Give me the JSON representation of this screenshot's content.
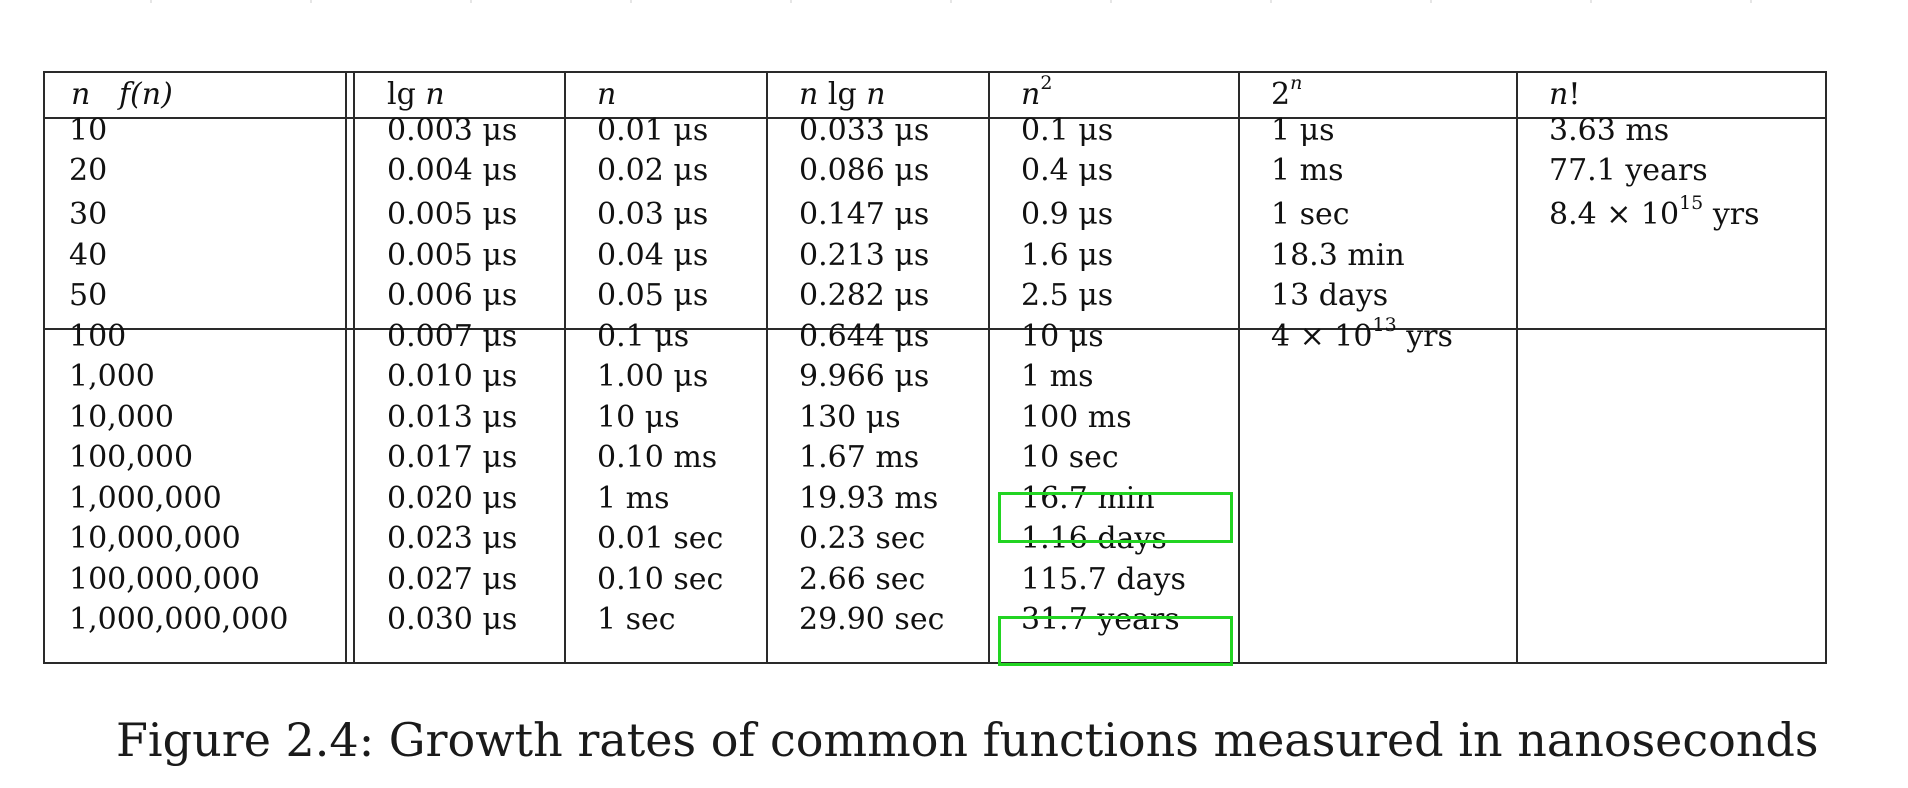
{
  "table": {
    "header": {
      "col0": "n",
      "col0b": "f(n)",
      "lg_label": "lg",
      "lg_var": "n",
      "n": "n",
      "nlgn_var": "n",
      "nlgn_lg": "lg",
      "nlgn_var2": "n",
      "n2_base": "n",
      "n2_exp": "2",
      "exp_base": "2",
      "exp_exp": "n",
      "fact_var": "n",
      "fact_bang": "!"
    },
    "rows": [
      {
        "n": "10",
        "lgn": "0.003 μs",
        "lin": "0.01 μs",
        "nlgn": "0.033 μs",
        "n2": "0.1 μs",
        "exp": "1 μs",
        "fact": "3.63 ms"
      },
      {
        "n": "20",
        "lgn": "0.004 μs",
        "lin": "0.02 μs",
        "nlgn": "0.086 μs",
        "n2": "0.4 μs",
        "exp": "1 ms",
        "fact": "77.1 years"
      },
      {
        "n": "30",
        "lgn": "0.005 μs",
        "lin": "0.03 μs",
        "nlgn": "0.147 μs",
        "n2": "0.9 μs",
        "exp": "1 sec",
        "fact_pre": "8.4 × 10",
        "fact_sup": "15",
        "fact_post": " yrs"
      },
      {
        "n": "40",
        "lgn": "0.005 μs",
        "lin": "0.04 μs",
        "nlgn": "0.213 μs",
        "n2": "1.6 μs",
        "exp": "18.3 min",
        "fact": ""
      },
      {
        "n": "50",
        "lgn": "0.006 μs",
        "lin": "0.05 μs",
        "nlgn": "0.282 μs",
        "n2": "2.5 μs",
        "exp": "13 days",
        "fact": ""
      },
      {
        "n": "100",
        "lgn": "0.007 μs",
        "lin": "0.1 μs",
        "nlgn": "0.644 μs",
        "n2": "10 μs",
        "exp_pre": "4 × 10",
        "exp_sup": "13",
        "exp_post": " yrs",
        "fact": ""
      },
      {
        "n": "1,000",
        "lgn": "0.010 μs",
        "lin": "1.00 μs",
        "nlgn": "9.966 μs",
        "n2": "1 ms",
        "exp": "",
        "fact": ""
      },
      {
        "n": "10,000",
        "lgn": "0.013 μs",
        "lin": "10 μs",
        "nlgn": "130 μs",
        "n2": "100 ms",
        "exp": "",
        "fact": ""
      },
      {
        "n": "100,000",
        "lgn": "0.017 μs",
        "lin": "0.10 ms",
        "nlgn": "1.67 ms",
        "n2": "10 sec",
        "exp": "",
        "fact": ""
      },
      {
        "n": "1,000,000",
        "lgn": "0.020 μs",
        "lin": "1 ms",
        "nlgn": "19.93 ms",
        "n2": "16.7 min",
        "exp": "",
        "fact": ""
      },
      {
        "n": "10,000,000",
        "lgn": "0.023 μs",
        "lin": "0.01 sec",
        "nlgn": "0.23 sec",
        "n2": "1.16 days",
        "exp": "",
        "fact": ""
      },
      {
        "n": "100,000,000",
        "lgn": "0.027 μs",
        "lin": "0.10 sec",
        "nlgn": "2.66 sec",
        "n2": "115.7 days",
        "exp": "",
        "fact": ""
      },
      {
        "n": "1,000,000,000",
        "lgn": "0.030 μs",
        "lin": "1 sec",
        "nlgn": "29.90 sec",
        "n2": "31.7 years",
        "exp": "",
        "fact": ""
      }
    ]
  },
  "highlight_color": "#22d422",
  "caption": "Figure 2.4: Growth rates of common functions measured in nanoseconds"
}
